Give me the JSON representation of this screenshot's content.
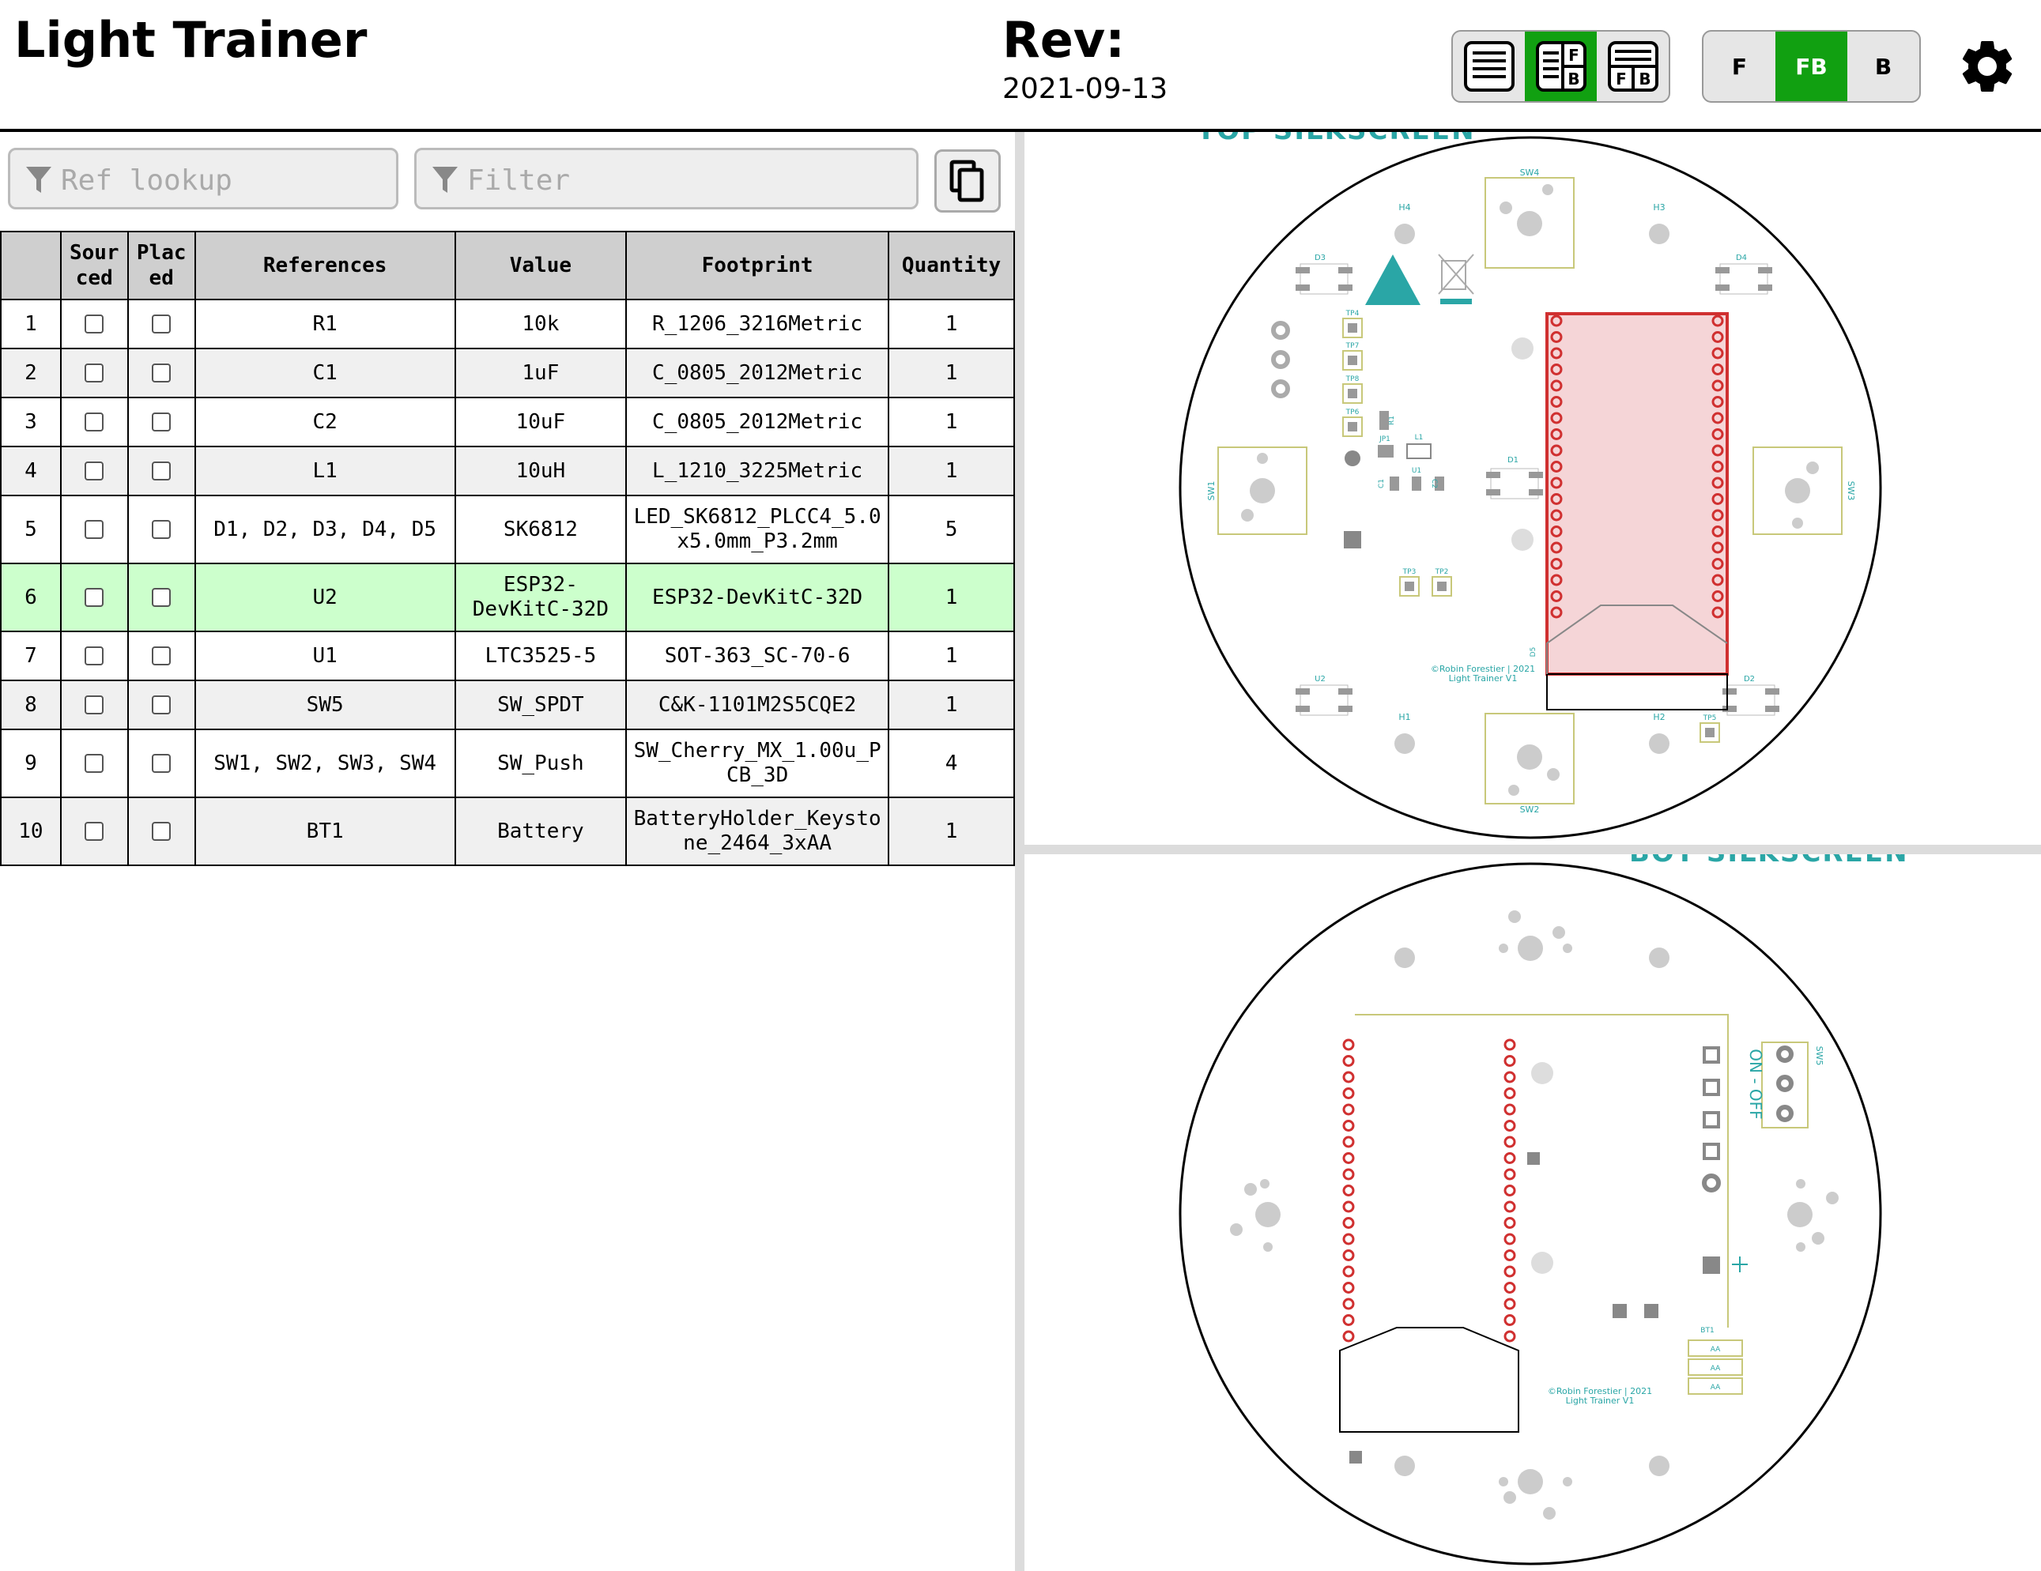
{
  "header": {
    "title": "Light Trainer",
    "rev_label": "Rev:",
    "rev_date": "2021-09-13",
    "bom_mode_buttons": [
      {
        "name": "bom-only",
        "active": false
      },
      {
        "name": "bom-left-drawings-right",
        "active": true,
        "letters": [
          "F",
          "B"
        ]
      },
      {
        "name": "bom-top-drawings-bottom",
        "active": false,
        "letters": [
          "F",
          "B"
        ]
      }
    ],
    "layer_buttons": [
      {
        "label": "F",
        "active": false
      },
      {
        "label": "FB",
        "active": true
      },
      {
        "label": "B",
        "active": false
      }
    ]
  },
  "search": {
    "ref_placeholder": "Ref lookup",
    "filter_placeholder": "Filter"
  },
  "table": {
    "headers": [
      "",
      "Sour\nced",
      "Plac\ned",
      "References",
      "Value",
      "Footprint",
      "Quantity"
    ],
    "rows": [
      {
        "n": "1",
        "ref": "R1",
        "value": "10k",
        "footprint": "R_1206_3216Metric",
        "qty": "1"
      },
      {
        "n": "2",
        "ref": "C1",
        "value": "1uF",
        "footprint": "C_0805_2012Metric",
        "qty": "1"
      },
      {
        "n": "3",
        "ref": "C2",
        "value": "10uF",
        "footprint": "C_0805_2012Metric",
        "qty": "1"
      },
      {
        "n": "4",
        "ref": "L1",
        "value": "10uH",
        "footprint": "L_1210_3225Metric",
        "qty": "1"
      },
      {
        "n": "5",
        "ref": "D1, D2, D3, D4, D5",
        "value": "SK6812",
        "footprint": "LED_SK6812_PLCC4_5.0\nx5.0mm_P3.2mm",
        "qty": "5"
      },
      {
        "n": "6",
        "ref": "U2",
        "value": "ESP32-\nDevKitC-32D",
        "footprint": "ESP32-DevKitC-32D",
        "qty": "1",
        "highlight": true
      },
      {
        "n": "7",
        "ref": "U1",
        "value": "LTC3525-5",
        "footprint": "SOT-363_SC-70-6",
        "qty": "1"
      },
      {
        "n": "8",
        "ref": "SW5",
        "value": "SW_SPDT",
        "footprint": "C&K-1101M2S5CQE2",
        "qty": "1"
      },
      {
        "n": "9",
        "ref": "SW1, SW2, SW3, SW4",
        "value": "SW_Push",
        "footprint": "SW_Cherry_MX_1.00u_P\nCB_3D",
        "qty": "4"
      },
      {
        "n": "10",
        "ref": "BT1",
        "value": "Battery",
        "footprint": "BatteryHolder_Keysto\nne_2464_3xAA",
        "qty": "1"
      }
    ]
  },
  "front_view": {
    "silk_title": "TOP SILKSCREEN",
    "labels": [
      "SW4",
      "H4",
      "H3",
      "D3",
      "D4",
      "TP4",
      "TP7",
      "TP8",
      "TP6",
      "R1",
      "JP1",
      "L1",
      "TP1",
      "C1",
      "U1",
      "C2",
      "D1",
      "SW1",
      "SW3",
      "TP3",
      "TP2",
      "U2",
      "D2",
      "D5",
      "H1",
      "H2",
      "TP5",
      "SW2"
    ],
    "credit_line1": "©Robin Forestier | 2021",
    "credit_line2": "Light Trainer V1"
  },
  "back_view": {
    "silk_title": "BOT SILKSCREEN",
    "labels": [
      "SW5",
      "BT1",
      "AA",
      "AA",
      "AA"
    ],
    "switch_text": "ON - OFF",
    "credit_line1": "©Robin Forestier | 2021",
    "credit_line2": "Light Trainer V1"
  },
  "colors": {
    "accent_green": "#11a011",
    "highlight_row": "#ccffcc",
    "silkscreen": "#2aa6a6",
    "pad_red": "#d03030",
    "pcb_edge": "#000000",
    "fab_yellow": "#c8c87a"
  }
}
